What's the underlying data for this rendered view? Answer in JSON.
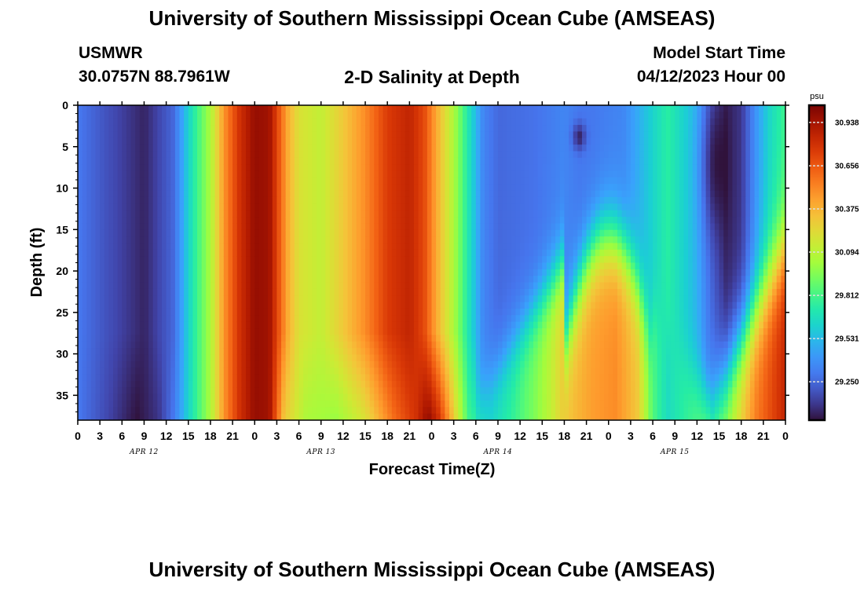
{
  "header": {
    "title": "University of Southern Mississippi Ocean Cube (AMSEAS)",
    "station_name": "USMWR",
    "station_coords": "30.0757N  88.7961W",
    "plot_title": "2-D Salinity at Depth",
    "model_start_label": "Model Start Time",
    "model_start_value": "04/12/2023 Hour 00"
  },
  "footer": {
    "title": "University of Southern Mississippi Ocean Cube (AMSEAS)"
  },
  "chart_data": {
    "type": "heatmap",
    "title": "2-D Salinity at Depth",
    "xlabel": "Forecast Time(Z)",
    "ylabel": "Depth (ft)",
    "x_tick_labels": [
      "0",
      "3",
      "6",
      "9",
      "12",
      "15",
      "18",
      "21",
      "0",
      "3",
      "6",
      "9",
      "12",
      "15",
      "18",
      "21",
      "0",
      "3",
      "6",
      "9",
      "12",
      "15",
      "18",
      "21",
      "0",
      "3",
      "6",
      "9",
      "12",
      "15",
      "18",
      "21",
      "0"
    ],
    "date_labels": [
      "APR 12",
      "APR 13",
      "APR 14",
      "APR 15"
    ],
    "y_ticks": [
      0,
      5,
      10,
      15,
      20,
      25,
      30,
      35
    ],
    "ylim": [
      38,
      0
    ],
    "xlim_hours": [
      0,
      96
    ],
    "colorbar": {
      "unit": "psu",
      "range": [
        29.0,
        31.05
      ],
      "tick_values": [
        30.938,
        30.656,
        30.375,
        30.094,
        29.812,
        29.531,
        29.25
      ],
      "tick_labels": [
        "30.938",
        "30.656",
        "30.375",
        "30.094",
        "29.812",
        "29.531",
        "29.250"
      ]
    },
    "salinity_profile_surface": [
      [
        0,
        29.3
      ],
      [
        4,
        29.18
      ],
      [
        9,
        29.05
      ],
      [
        13,
        29.25
      ],
      [
        15.5,
        29.7
      ],
      [
        18,
        30.05
      ],
      [
        20,
        30.5
      ],
      [
        22,
        30.8
      ],
      [
        24,
        30.98
      ],
      [
        26,
        30.95
      ],
      [
        28.5,
        30.4
      ],
      [
        30,
        30.2
      ],
      [
        33,
        30.12
      ],
      [
        36,
        30.3
      ],
      [
        39,
        30.5
      ],
      [
        42,
        30.75
      ],
      [
        45,
        30.85
      ],
      [
        47,
        30.7
      ],
      [
        49,
        30.35
      ],
      [
        51,
        30.05
      ],
      [
        53,
        29.7
      ],
      [
        55,
        29.35
      ],
      [
        57,
        29.25
      ],
      [
        62,
        29.28
      ],
      [
        66,
        29.35
      ],
      [
        68,
        29.3
      ],
      [
        70,
        29.3
      ],
      [
        74,
        29.35
      ],
      [
        77,
        29.55
      ],
      [
        80,
        29.75
      ],
      [
        84,
        29.5
      ],
      [
        86,
        29.25
      ],
      [
        88,
        29.05
      ],
      [
        90,
        29.1
      ],
      [
        92,
        29.4
      ],
      [
        94,
        29.65
      ],
      [
        96,
        29.8
      ]
    ],
    "salinity_profile_bottom": [
      [
        0,
        29.3
      ],
      [
        4,
        29.15
      ],
      [
        8,
        29.0
      ],
      [
        11,
        29.1
      ],
      [
        13,
        29.3
      ],
      [
        15.5,
        29.7
      ],
      [
        18,
        30.05
      ],
      [
        20,
        30.5
      ],
      [
        22,
        30.8
      ],
      [
        24,
        30.98
      ],
      [
        26,
        30.95
      ],
      [
        28,
        30.3
      ],
      [
        31,
        30.05
      ],
      [
        35,
        30.0
      ],
      [
        39,
        30.2
      ],
      [
        43,
        30.6
      ],
      [
        46,
        30.8
      ],
      [
        47.5,
        31.0
      ],
      [
        49,
        30.8
      ],
      [
        51,
        30.3
      ],
      [
        53,
        29.8
      ],
      [
        56,
        29.65
      ],
      [
        59,
        29.78
      ],
      [
        62,
        29.95
      ],
      [
        64,
        30.1
      ],
      [
        66,
        30.3
      ],
      [
        70,
        30.45
      ],
      [
        73,
        30.5
      ],
      [
        76,
        30.3
      ],
      [
        78,
        29.85
      ],
      [
        80,
        29.65
      ],
      [
        82,
        29.75
      ],
      [
        84,
        29.85
      ],
      [
        86,
        29.95
      ],
      [
        88,
        30.05
      ],
      [
        90,
        30.3
      ],
      [
        92,
        30.55
      ],
      [
        94,
        30.7
      ],
      [
        96,
        30.85
      ]
    ]
  }
}
